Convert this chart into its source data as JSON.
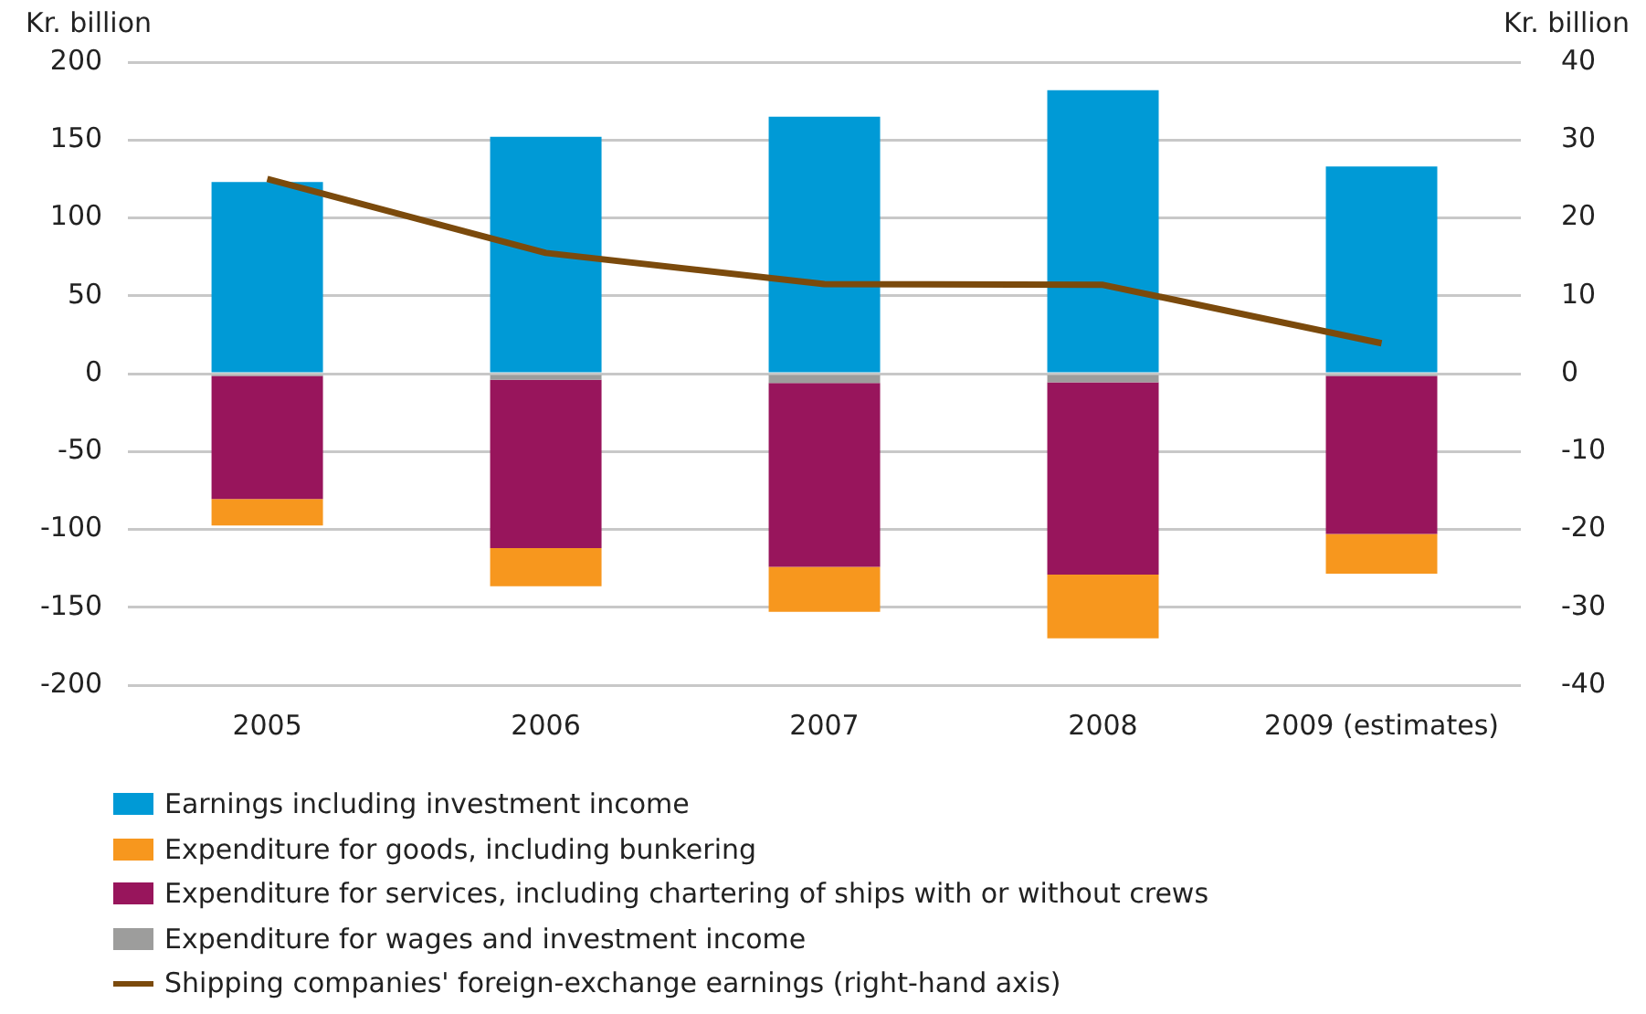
{
  "chart_data": {
    "type": "bar",
    "stacked": true,
    "categories": [
      "2005",
      "2006",
      "2007",
      "2008",
      "2009 (estimates)"
    ],
    "ylabel": "Kr. billion",
    "y2label": "Kr. billion",
    "ylim": [
      -200,
      200
    ],
    "yticks": [
      -200,
      -150,
      -100,
      -50,
      0,
      50,
      100,
      150,
      200
    ],
    "y2lim": [
      -40,
      40
    ],
    "y2ticks": [
      -40,
      -30,
      -20,
      -10,
      0,
      10,
      20,
      30,
      40
    ],
    "grid": "y",
    "legend": "bottom",
    "series": [
      {
        "name": "Earnings including investment income",
        "color": "#009ad6",
        "values": [
          123,
          152,
          165,
          182,
          133
        ]
      },
      {
        "name": "Expenditure for wages and investment income",
        "color": "#9d9d9c",
        "values": [
          -1.5,
          -4,
          -6,
          -5.5,
          -1.5
        ]
      },
      {
        "name": "Expenditure for services, including chartering of ships with or without crews",
        "color": "#98155c",
        "values": [
          -79,
          -108,
          -118,
          -123.5,
          -101.5
        ]
      },
      {
        "name": "Expenditure for goods, including bunkering",
        "color": "#f7971e",
        "values": [
          -17,
          -24.5,
          -29,
          -41,
          -25.5
        ]
      },
      {
        "name": "Shipping companies' foreign-exchange earnings (right-hand axis)",
        "type": "line",
        "axis": "y2",
        "color": "#7b4a0c",
        "marker": "none",
        "values": [
          25,
          15.5,
          11.5,
          11.4,
          3.9
        ]
      }
    ]
  }
}
